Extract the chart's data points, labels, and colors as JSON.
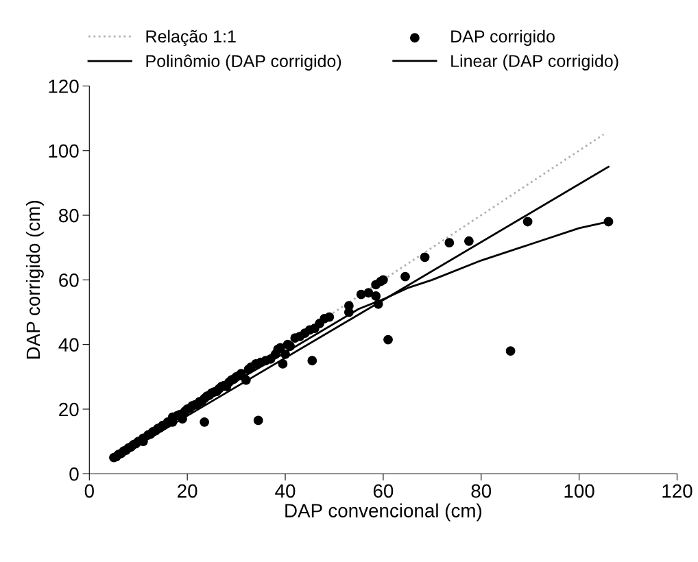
{
  "chart_data": {
    "type": "scatter",
    "xlabel": "DAP convencional (cm)",
    "ylabel": "DAP corrigido (cm)",
    "xlim": [
      0,
      120
    ],
    "ylim": [
      0,
      120
    ],
    "xticks": [
      0,
      20,
      40,
      60,
      80,
      100,
      120
    ],
    "yticks": [
      0,
      20,
      40,
      60,
      80,
      100,
      120
    ],
    "grid": false,
    "legend": "top",
    "series": [
      {
        "name": "Relação 1:1",
        "type": "line",
        "color": "#b0b0b0",
        "line_style": "dotted",
        "marker": "none",
        "x": [
          5,
          105
        ],
        "values": [
          5,
          105
        ]
      },
      {
        "name": "DAP corrigido",
        "type": "scatter",
        "color": "#000000",
        "marker": "circle",
        "x": [
          5,
          5.5,
          6,
          6.5,
          7,
          7.5,
          8,
          8.5,
          9,
          9.5,
          10,
          11,
          11,
          12,
          12.5,
          13,
          13.5,
          14,
          14.5,
          15,
          16,
          17,
          17,
          18,
          18.5,
          19,
          19.5,
          20,
          20.5,
          21,
          21.5,
          22,
          22.5,
          23,
          23.5,
          24,
          24.5,
          25,
          25.5,
          26,
          26.5,
          27,
          27.5,
          28,
          28.5,
          29,
          29.5,
          30,
          30.5,
          31,
          32,
          32.5,
          33,
          34,
          35,
          36,
          37,
          38,
          38.5,
          39,
          40,
          40.5,
          41,
          42,
          43,
          44,
          45,
          46,
          47,
          48,
          49,
          23.5,
          34.5,
          39.5,
          45.5,
          53,
          53,
          55.5,
          57,
          58.5,
          58.5,
          59,
          59.5,
          60,
          61,
          64.5,
          68.5,
          73.5,
          77.5,
          86,
          89.5,
          106
        ],
        "values": [
          5,
          5.3,
          6,
          6.3,
          7,
          7.3,
          8,
          8.3,
          9,
          9.3,
          10,
          10,
          11,
          12,
          12.3,
          13,
          13.3,
          14,
          14.3,
          15,
          16,
          16,
          17.5,
          18,
          18.3,
          17,
          19.3,
          20,
          20.3,
          21,
          21.3,
          21.5,
          22.3,
          22.5,
          23.3,
          24,
          24.3,
          25,
          25.3,
          25.5,
          26.3,
          27,
          27.3,
          27,
          28.3,
          29,
          29.3,
          30,
          30.3,
          31,
          29,
          32.3,
          33,
          34,
          34.5,
          35,
          35.5,
          37,
          38.5,
          39,
          37,
          40,
          39.5,
          42,
          42.5,
          43.5,
          44.5,
          45,
          46.5,
          48,
          48.5,
          16,
          16.5,
          34,
          35,
          50,
          52,
          55.5,
          56,
          55,
          58.5,
          52.5,
          59.5,
          60,
          41.5,
          61,
          67,
          71.5,
          72,
          38,
          78,
          78
        ]
      },
      {
        "name": "Polinômio (DAP corrigido)",
        "type": "line",
        "color": "#000000",
        "line_style": "solid",
        "marker": "none",
        "x": [
          5,
          20,
          40,
          55,
          60,
          65,
          70,
          80,
          90,
          100,
          106
        ],
        "values": [
          5,
          20,
          37.5,
          51,
          54,
          57.5,
          60,
          66,
          71,
          76,
          78
        ]
      },
      {
        "name": "Linear (DAP corrigido)",
        "type": "line",
        "color": "#000000",
        "line_style": "solid",
        "marker": "none",
        "x": [
          5,
          106
        ],
        "values": [
          4.5,
          95
        ]
      }
    ]
  }
}
